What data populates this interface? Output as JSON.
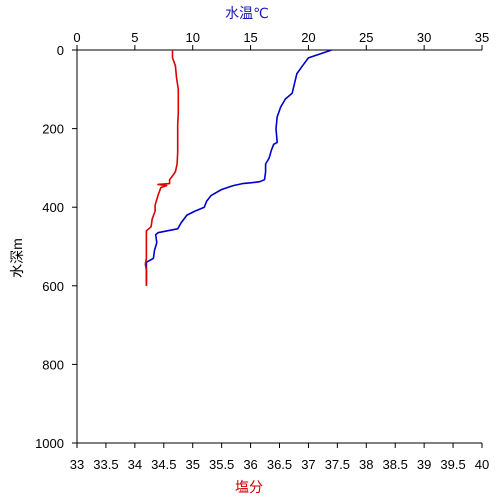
{
  "chart_data": {
    "type": "line",
    "top_axis": {
      "label": "水温℃",
      "color": "#1a1ab8",
      "range": [
        0,
        35
      ],
      "ticks": [
        "0",
        "5",
        "10",
        "15",
        "20",
        "25",
        "30",
        "35"
      ]
    },
    "bottom_axis": {
      "label": "塩分",
      "color": "#cc0000",
      "range": [
        33,
        40
      ],
      "ticks": [
        "33",
        "33.5",
        "34",
        "34.5",
        "35",
        "35.5",
        "36",
        "36.5",
        "37",
        "37.5",
        "38",
        "38.5",
        "39",
        "39.5",
        "40"
      ]
    },
    "left_axis": {
      "label": "水深m",
      "range": [
        0,
        1000
      ],
      "inverted": true,
      "ticks": [
        "0",
        "200",
        "400",
        "600",
        "800",
        "1000"
      ]
    },
    "series": [
      {
        "color": "#0000cc",
        "axis": "top",
        "points": [
          [
            22.0,
            0
          ],
          [
            21.5,
            5
          ],
          [
            20.8,
            12
          ],
          [
            20.0,
            20
          ],
          [
            19.5,
            40
          ],
          [
            19.0,
            60
          ],
          [
            18.8,
            85
          ],
          [
            18.6,
            110
          ],
          [
            18.0,
            125
          ],
          [
            17.6,
            145
          ],
          [
            17.3,
            170
          ],
          [
            17.2,
            200
          ],
          [
            17.3,
            235
          ],
          [
            17.0,
            240
          ],
          [
            16.8,
            255
          ],
          [
            16.6,
            275
          ],
          [
            16.3,
            290
          ],
          [
            16.3,
            310
          ],
          [
            16.2,
            330
          ],
          [
            15.8,
            335
          ],
          [
            15.0,
            338
          ],
          [
            14.3,
            340
          ],
          [
            13.5,
            345
          ],
          [
            12.5,
            355
          ],
          [
            11.6,
            370
          ],
          [
            11.2,
            385
          ],
          [
            11.0,
            400
          ],
          [
            10.2,
            410
          ],
          [
            9.5,
            420
          ],
          [
            9.0,
            440
          ],
          [
            8.7,
            455
          ],
          [
            7.8,
            460
          ],
          [
            7.0,
            465
          ],
          [
            6.8,
            470
          ],
          [
            6.9,
            490
          ],
          [
            6.7,
            510
          ],
          [
            6.6,
            530
          ],
          [
            6.3,
            535
          ],
          [
            6.0,
            540
          ],
          [
            6.0,
            600
          ]
        ]
      },
      {
        "color": "#dd0000",
        "axis": "bottom",
        "points": [
          [
            34.65,
            0
          ],
          [
            34.65,
            20
          ],
          [
            34.7,
            40
          ],
          [
            34.72,
            70
          ],
          [
            34.75,
            100
          ],
          [
            34.75,
            130
          ],
          [
            34.75,
            160
          ],
          [
            34.74,
            190
          ],
          [
            34.74,
            230
          ],
          [
            34.74,
            260
          ],
          [
            34.73,
            290
          ],
          [
            34.7,
            310
          ],
          [
            34.65,
            320
          ],
          [
            34.6,
            330
          ],
          [
            34.6,
            340
          ],
          [
            34.4,
            342
          ],
          [
            34.55,
            345
          ],
          [
            34.45,
            350
          ],
          [
            34.4,
            370
          ],
          [
            34.35,
            395
          ],
          [
            34.35,
            410
          ],
          [
            34.3,
            430
          ],
          [
            34.28,
            450
          ],
          [
            34.2,
            460
          ],
          [
            34.2,
            470
          ],
          [
            34.2,
            500
          ],
          [
            34.2,
            530
          ],
          [
            34.18,
            545
          ],
          [
            34.2,
            560
          ],
          [
            34.2,
            600
          ]
        ]
      }
    ]
  }
}
